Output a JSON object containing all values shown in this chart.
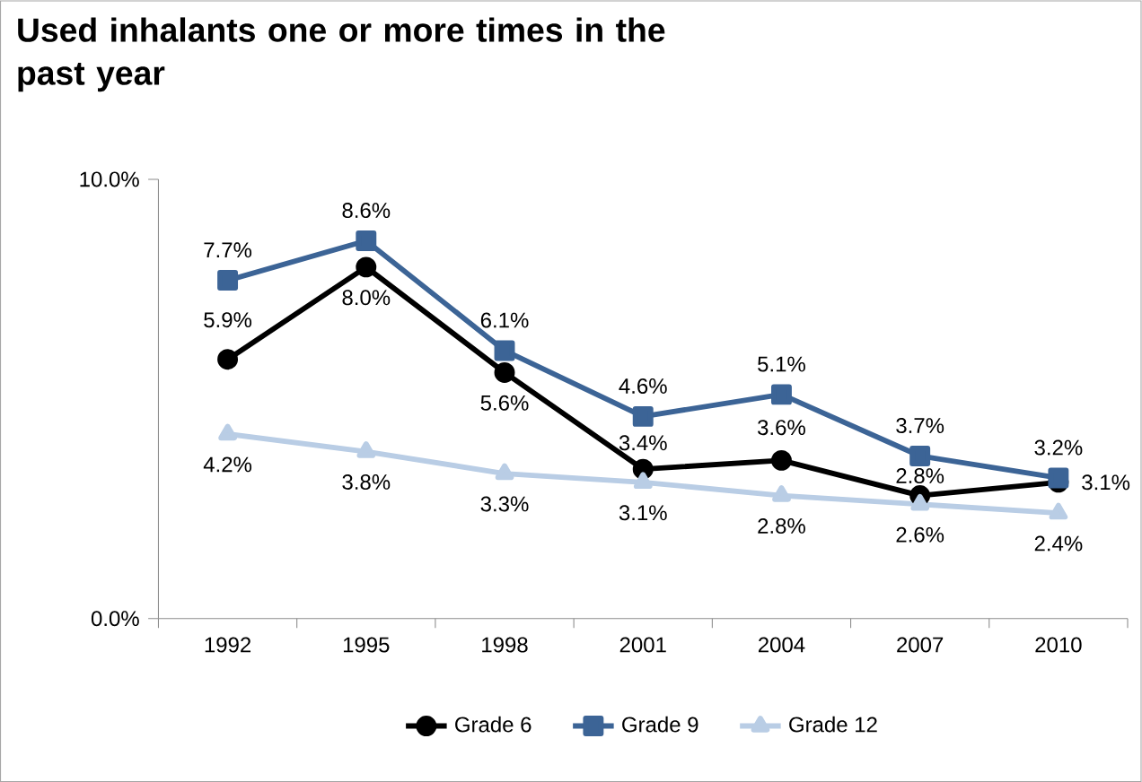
{
  "chart_data": {
    "type": "line",
    "title": "Used inhalants one or more times in the past year",
    "categories": [
      "1992",
      "1995",
      "1998",
      "2001",
      "2004",
      "2007",
      "2010"
    ],
    "series": [
      {
        "name": "Grade 6",
        "color": "#000000",
        "marker": "circle",
        "values": [
          5.9,
          8.0,
          5.6,
          3.4,
          3.6,
          2.8,
          3.1
        ],
        "value_labels": [
          "5.9%",
          "8.0%",
          "5.6%",
          "3.4%",
          "3.6%",
          "2.8%",
          "3.1%"
        ]
      },
      {
        "name": "Grade 9",
        "color": "#3c6496",
        "marker": "square",
        "values": [
          7.7,
          8.6,
          6.1,
          4.6,
          5.1,
          3.7,
          3.2
        ],
        "value_labels": [
          "7.7%",
          "8.6%",
          "6.1%",
          "4.6%",
          "5.1%",
          "3.7%",
          "3.2%"
        ]
      },
      {
        "name": "Grade 12",
        "color": "#b9cde5",
        "marker": "triangle",
        "values": [
          4.2,
          3.8,
          3.3,
          3.1,
          2.8,
          2.6,
          2.4
        ],
        "value_labels": [
          "4.2%",
          "3.8%",
          "3.3%",
          "3.1%",
          "2.8%",
          "2.6%",
          "2.4%"
        ]
      }
    ],
    "ylim": [
      0,
      10
    ],
    "yticks": [
      {
        "value": 0,
        "label": "0.0%"
      },
      {
        "value": 10,
        "label": "10.0%"
      }
    ],
    "grid": false,
    "legend": "bottom",
    "line_style": "solid"
  }
}
